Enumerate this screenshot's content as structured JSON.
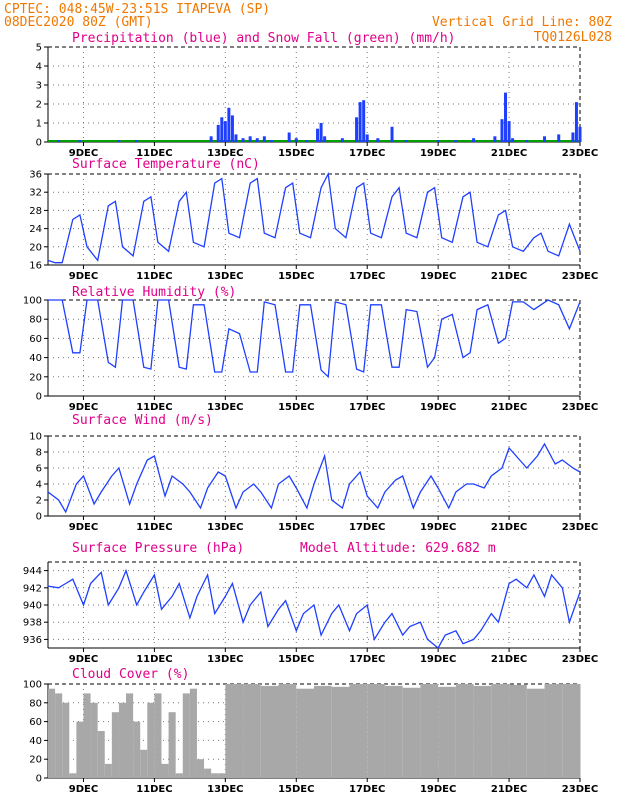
{
  "header": {
    "left_line1": "CPTEC:   048:45W-23:51S   ITAPEVA (SP)",
    "left_line2": "08DEC2020 80Z (GMT)",
    "right_line1": "Vertical Grid Line: 80Z",
    "right_line2": "TQ0126L028"
  },
  "colors": {
    "header": "#f07800",
    "title": "#e0008a",
    "line": "#1f3fff",
    "snow": "#00a000",
    "cloud": "#a8a8a8"
  },
  "chart_data": [
    {
      "type": "bar",
      "title": "Precipitation (blue) and Snow Fall (green) (mm/h)",
      "ylim": [
        0,
        5
      ],
      "yticks": [
        0,
        1,
        2,
        3,
        4,
        5
      ],
      "xticks": [
        "9DEC",
        "11DEC",
        "13DEC",
        "15DEC",
        "17DEC",
        "19DEC",
        "21DEC",
        "23DEC"
      ],
      "xrange_days": [
        8,
        23
      ],
      "x_day": [
        8.3,
        8.9,
        10.0,
        10.5,
        12.6,
        12.8,
        12.9,
        13.0,
        13.1,
        13.2,
        13.3,
        13.5,
        13.7,
        13.9,
        14.1,
        14.3,
        14.8,
        15.0,
        15.3,
        15.6,
        15.7,
        15.8,
        16.3,
        16.7,
        16.8,
        16.9,
        17.0,
        17.3,
        17.7,
        18.1,
        19.0,
        19.5,
        20.0,
        20.6,
        20.8,
        20.9,
        21.0,
        21.1,
        21.5,
        22.0,
        22.4,
        22.8,
        22.9,
        23.0
      ],
      "values": [
        0.1,
        0.1,
        0.1,
        0.1,
        0.3,
        0.9,
        1.3,
        1.1,
        1.8,
        1.4,
        0.4,
        0.2,
        0.3,
        0.2,
        0.3,
        0.1,
        0.5,
        0.2,
        0.1,
        0.7,
        1.0,
        0.3,
        0.2,
        1.3,
        2.1,
        2.2,
        0.4,
        0.2,
        0.8,
        0.1,
        0.1,
        0.1,
        0.2,
        0.3,
        1.2,
        2.6,
        1.1,
        0.2,
        0.1,
        0.3,
        0.4,
        0.5,
        2.1,
        0.8
      ],
      "snow_values_flat": 0.0
    },
    {
      "type": "line",
      "title": "Surface Temperature (nC)",
      "ylim": [
        16,
        36
      ],
      "yticks": [
        16,
        20,
        24,
        28,
        32,
        36
      ],
      "xticks": [
        "9DEC",
        "11DEC",
        "13DEC",
        "15DEC",
        "17DEC",
        "19DEC",
        "21DEC",
        "23DEC"
      ],
      "xrange_days": [
        8,
        23
      ],
      "x_day": [
        8.0,
        8.2,
        8.4,
        8.7,
        8.9,
        9.1,
        9.4,
        9.7,
        9.9,
        10.1,
        10.4,
        10.7,
        10.9,
        11.1,
        11.4,
        11.7,
        11.9,
        12.1,
        12.4,
        12.7,
        12.9,
        13.1,
        13.4,
        13.7,
        13.9,
        14.1,
        14.4,
        14.7,
        14.9,
        15.1,
        15.4,
        15.7,
        15.9,
        16.1,
        16.4,
        16.7,
        16.9,
        17.1,
        17.4,
        17.7,
        17.9,
        18.1,
        18.4,
        18.7,
        18.9,
        19.1,
        19.4,
        19.7,
        19.9,
        20.1,
        20.4,
        20.7,
        20.9,
        21.1,
        21.4,
        21.7,
        21.9,
        22.1,
        22.4,
        22.7,
        23.0
      ],
      "values": [
        17,
        16.5,
        16.5,
        26,
        27,
        20,
        17,
        29,
        30,
        20,
        18,
        30,
        31,
        21,
        19,
        30,
        32,
        21,
        20,
        34,
        35,
        23,
        22,
        34,
        35,
        23,
        22,
        33,
        34,
        23,
        22,
        33,
        36,
        24,
        22,
        33,
        34,
        23,
        22,
        31,
        33,
        23,
        22,
        32,
        33,
        22,
        21,
        31,
        32,
        21,
        20,
        27,
        28,
        20,
        19,
        22,
        23,
        19,
        18,
        25,
        19
      ],
      "snow_values_flat": null
    },
    {
      "type": "line",
      "title": "Relative Humidity (%)",
      "ylim": [
        0,
        100
      ],
      "yticks": [
        0,
        20,
        40,
        60,
        80,
        100
      ],
      "xticks": [
        "9DEC",
        "11DEC",
        "13DEC",
        "15DEC",
        "17DEC",
        "19DEC",
        "21DEC",
        "23DEC"
      ],
      "xrange_days": [
        8,
        23
      ],
      "x_day": [
        8.0,
        8.4,
        8.7,
        8.9,
        9.1,
        9.4,
        9.7,
        9.9,
        10.1,
        10.4,
        10.7,
        10.9,
        11.1,
        11.4,
        11.7,
        11.9,
        12.1,
        12.4,
        12.7,
        12.9,
        13.1,
        13.4,
        13.7,
        13.9,
        14.1,
        14.4,
        14.7,
        14.9,
        15.1,
        15.4,
        15.7,
        15.9,
        16.1,
        16.4,
        16.7,
        16.9,
        17.1,
        17.4,
        17.7,
        17.9,
        18.1,
        18.4,
        18.7,
        18.9,
        19.1,
        19.4,
        19.7,
        19.9,
        20.1,
        20.4,
        20.7,
        20.9,
        21.1,
        21.4,
        21.7,
        21.9,
        22.1,
        22.4,
        22.7,
        23.0
      ],
      "values": [
        100,
        100,
        45,
        45,
        100,
        100,
        35,
        30,
        100,
        100,
        30,
        28,
        100,
        100,
        30,
        28,
        95,
        95,
        25,
        25,
        70,
        65,
        25,
        25,
        98,
        95,
        25,
        25,
        95,
        95,
        27,
        20,
        98,
        95,
        28,
        25,
        95,
        95,
        30,
        30,
        90,
        88,
        30,
        40,
        80,
        85,
        40,
        45,
        90,
        95,
        55,
        60,
        98,
        98,
        90,
        95,
        100,
        95,
        70,
        98
      ]
    },
    {
      "type": "line",
      "title": "Surface Wind (m/s)",
      "ylim": [
        0,
        10
      ],
      "yticks": [
        0,
        2,
        4,
        6,
        8,
        10
      ],
      "xticks": [
        "9DEC",
        "11DEC",
        "13DEC",
        "15DEC",
        "17DEC",
        "19DEC",
        "21DEC",
        "23DEC"
      ],
      "xrange_days": [
        8,
        23
      ],
      "x_day": [
        8.0,
        8.3,
        8.5,
        8.8,
        9.0,
        9.3,
        9.5,
        9.8,
        10.0,
        10.3,
        10.5,
        10.8,
        11.0,
        11.3,
        11.5,
        11.8,
        12.0,
        12.3,
        12.5,
        12.8,
        13.0,
        13.3,
        13.5,
        13.8,
        14.0,
        14.3,
        14.5,
        14.8,
        15.0,
        15.3,
        15.5,
        15.8,
        16.0,
        16.3,
        16.5,
        16.8,
        17.0,
        17.3,
        17.5,
        17.8,
        18.0,
        18.3,
        18.5,
        18.8,
        19.0,
        19.3,
        19.5,
        19.8,
        20.0,
        20.3,
        20.5,
        20.8,
        21.0,
        21.3,
        21.5,
        21.8,
        22.0,
        22.3,
        22.5,
        22.8,
        23.0
      ],
      "values": [
        3,
        2,
        0.5,
        4,
        5,
        1.5,
        3,
        5,
        6,
        1.5,
        4,
        7,
        7.5,
        2.5,
        5,
        4,
        3,
        1,
        3.5,
        5.5,
        5,
        1,
        3,
        4,
        3,
        1,
        4,
        5,
        3.5,
        1,
        4,
        7.5,
        2,
        1,
        4,
        5.5,
        2.5,
        1,
        3,
        4.5,
        5,
        1,
        3,
        5,
        3.5,
        1,
        3,
        4,
        4,
        3.5,
        5,
        6,
        8.5,
        7,
        6,
        7.5,
        9,
        6.5,
        7,
        6,
        5.5
      ]
    },
    {
      "type": "line",
      "title": "Surface Pressure (hPa)",
      "annotation": "Model Altitude: 629.682 m",
      "ylim": [
        935,
        945
      ],
      "yticks": [
        936,
        938,
        940,
        942,
        944
      ],
      "xticks": [
        "9DEC",
        "11DEC",
        "13DEC",
        "15DEC",
        "17DEC",
        "19DEC",
        "21DEC",
        "23DEC"
      ],
      "xrange_days": [
        8,
        23
      ],
      "x_day": [
        8.0,
        8.3,
        8.5,
        8.7,
        9.0,
        9.2,
        9.5,
        9.7,
        10.0,
        10.2,
        10.5,
        10.7,
        11.0,
        11.2,
        11.5,
        11.7,
        12.0,
        12.2,
        12.5,
        12.7,
        13.0,
        13.2,
        13.5,
        13.7,
        14.0,
        14.2,
        14.5,
        14.7,
        15.0,
        15.2,
        15.5,
        15.7,
        16.0,
        16.2,
        16.5,
        16.7,
        17.0,
        17.2,
        17.5,
        17.7,
        18.0,
        18.2,
        18.5,
        18.7,
        19.0,
        19.2,
        19.5,
        19.7,
        20.0,
        20.2,
        20.5,
        20.7,
        21.0,
        21.2,
        21.5,
        21.7,
        22.0,
        22.2,
        22.5,
        22.7,
        23.0
      ],
      "values": [
        942.2,
        942,
        942.5,
        943,
        940,
        942.5,
        943.8,
        940,
        942,
        944,
        940,
        941.5,
        943.5,
        939.5,
        941,
        942.5,
        938.5,
        941,
        943.5,
        939,
        941,
        942.5,
        938,
        940,
        941.5,
        937.5,
        939.5,
        940.5,
        937,
        939,
        940,
        936.5,
        939,
        940,
        937,
        939,
        940,
        936,
        938,
        939,
        936.5,
        937.5,
        938,
        936,
        935,
        936.5,
        937,
        935.5,
        936,
        937,
        939,
        938,
        942.5,
        943,
        942,
        943.5,
        941,
        943.5,
        942,
        938,
        941.5
      ]
    },
    {
      "type": "area",
      "title": "Cloud Cover (%)",
      "ylim": [
        0,
        100
      ],
      "yticks": [
        0,
        20,
        40,
        60,
        80,
        100
      ],
      "xticks": [
        "9DEC",
        "11DEC",
        "13DEC",
        "15DEC",
        "17DEC",
        "19DEC",
        "21DEC",
        "23DEC"
      ],
      "xrange_days": [
        8,
        23
      ],
      "x_day": [
        8.0,
        8.2,
        8.4,
        8.6,
        8.8,
        9.0,
        9.2,
        9.4,
        9.6,
        9.8,
        10.0,
        10.2,
        10.4,
        10.6,
        10.8,
        11.0,
        11.2,
        11.4,
        11.6,
        11.8,
        12.0,
        12.2,
        12.4,
        12.6,
        12.8,
        13.0,
        13.5,
        14.0,
        14.5,
        15.0,
        15.5,
        16.0,
        16.5,
        17.0,
        17.5,
        18.0,
        18.5,
        19.0,
        19.5,
        20.0,
        20.5,
        21.0,
        21.5,
        22.0,
        22.5,
        23.0
      ],
      "values": [
        95,
        90,
        80,
        5,
        60,
        90,
        80,
        50,
        15,
        70,
        80,
        90,
        60,
        30,
        80,
        90,
        15,
        70,
        5,
        90,
        95,
        20,
        10,
        5,
        5,
        100,
        100,
        98,
        100,
        95,
        98,
        97,
        100,
        100,
        98,
        96,
        100,
        97,
        100,
        98,
        100,
        99,
        95,
        100,
        100,
        100
      ]
    }
  ]
}
